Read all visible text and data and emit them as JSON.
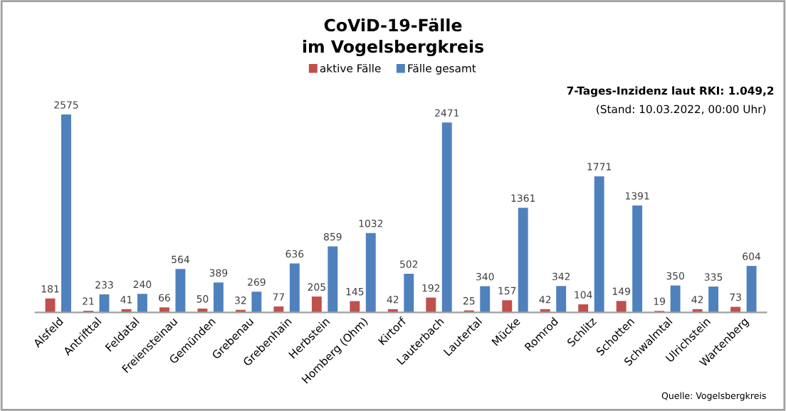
{
  "chart_data": {
    "type": "bar",
    "title": "CoViD-19-Fälle\nim Vogelsbergkreis",
    "categories": [
      "Alsfeld",
      "Antrifttal",
      "Feldatal",
      "Freiensteinau",
      "Gemünden",
      "Grebenau",
      "Grebenhain",
      "Herbstein",
      "Homberg (Ohm)",
      "Kirtorf",
      "Lauterbach",
      "Lautertal",
      "Mücke",
      "Romrod",
      "Schlitz",
      "Schotten",
      "Schwalmtal",
      "Ulrichstein",
      "Wartenberg"
    ],
    "series": [
      {
        "name": "aktive Fälle",
        "color": "#c0504d",
        "values": [
          181,
          21,
          41,
          66,
          50,
          32,
          77,
          205,
          145,
          42,
          192,
          25,
          157,
          42,
          104,
          149,
          19,
          42,
          73
        ]
      },
      {
        "name": "Fälle gesamt",
        "color": "#4f81bd",
        "values": [
          2575,
          233,
          240,
          564,
          389,
          269,
          636,
          859,
          1032,
          502,
          2471,
          340,
          1361,
          342,
          1771,
          1391,
          350,
          335,
          604
        ]
      }
    ],
    "data_labels": true,
    "legend": "top",
    "grid": false,
    "annotations": [
      "7-Tages-Inzidenz laut RKI: 1.049,2",
      "(Stand: 10.03.2022, 00:00 Uhr)",
      "Quelle: Vogelsbergkreis"
    ]
  }
}
